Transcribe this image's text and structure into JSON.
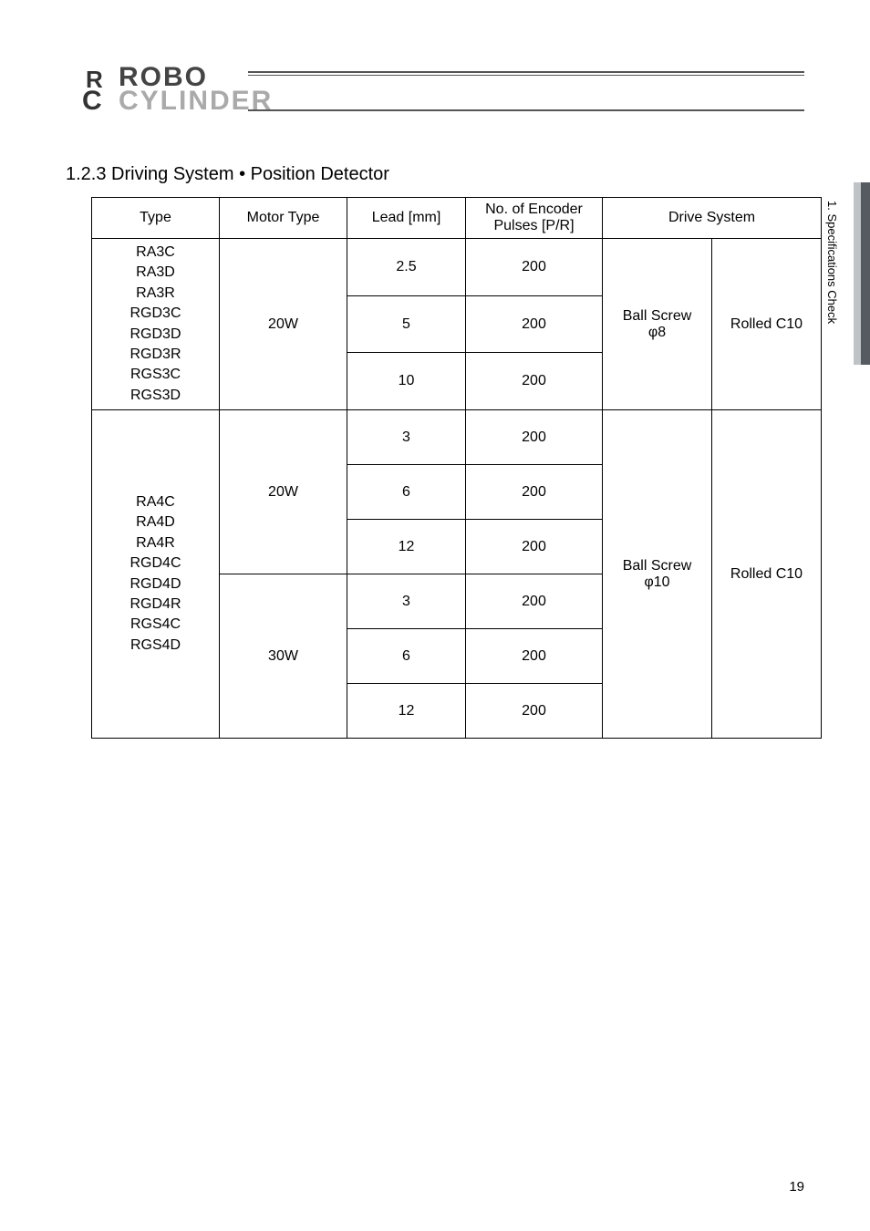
{
  "logo": {
    "top": "ROBO",
    "bottom": "CYLINDER",
    "r": "R",
    "c": "C"
  },
  "section_title": "1.2.3   Driving System • Position Detector",
  "table": {
    "headers": {
      "type": "Type",
      "motor": "Motor Type",
      "lead": "Lead [mm]",
      "encoder": "No. of Encoder\nPulses [P/R]",
      "drive": "Drive System"
    },
    "group1": {
      "types": "RA3C\nRA3D\nRA3R\nRGD3C\nRGD3D\nRGD3R\nRGS3C\nRGS3D",
      "motor": "20W",
      "rows": [
        {
          "lead": "2.5",
          "encoder": "200"
        },
        {
          "lead": "5",
          "encoder": "200"
        },
        {
          "lead": "10",
          "encoder": "200"
        }
      ],
      "screw": "Ball Screw\nφ8",
      "grade": "Rolled C10"
    },
    "group2": {
      "types": "RA4C\nRA4D\nRA4R\nRGD4C\nRGD4D\nRGD4R\nRGS4C\nRGS4D",
      "motor_a": "20W",
      "motor_b": "30W",
      "rows_a": [
        {
          "lead": "3",
          "encoder": "200"
        },
        {
          "lead": "6",
          "encoder": "200"
        },
        {
          "lead": "12",
          "encoder": "200"
        }
      ],
      "rows_b": [
        {
          "lead": "3",
          "encoder": "200"
        },
        {
          "lead": "6",
          "encoder": "200"
        },
        {
          "lead": "12",
          "encoder": "200"
        }
      ],
      "screw": "Ball Screw\nφ10",
      "grade": "Rolled C10"
    }
  },
  "side_label": "1. Specifications Check",
  "page_number": "19",
  "colors": {
    "text": "#000000",
    "border": "#000000",
    "tab_dark": "#555b61",
    "tab_light": "#bfc3c7",
    "logo_dark": "#444444",
    "logo_light": "#aaaaaa",
    "background": "#ffffff"
  },
  "typography": {
    "body_fontsize": 16,
    "title_fontsize": 20,
    "side_fontsize": 13,
    "pagenum_fontsize": 15
  }
}
